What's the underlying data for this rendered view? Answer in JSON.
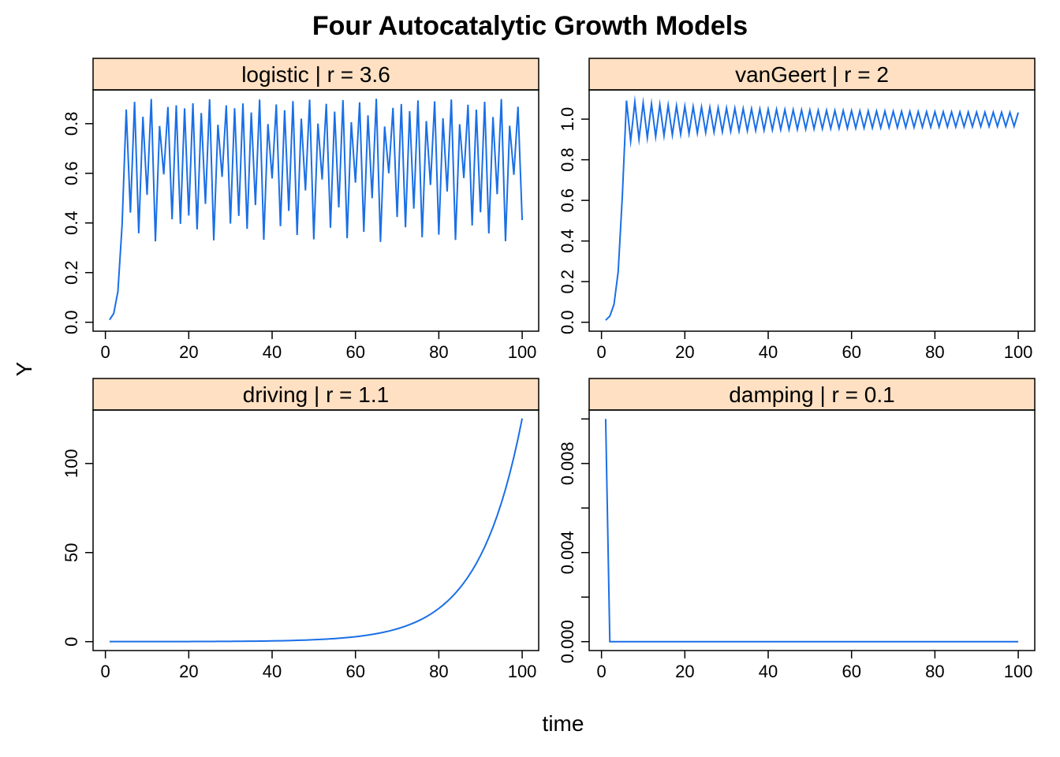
{
  "title": "Four Autocatalytic Growth Models",
  "xlabel": "time",
  "ylabel": "Y",
  "colors": {
    "line": "#1a6fe6",
    "strip": "#ffe0c2",
    "axis": "#000000"
  },
  "chart_data": [
    {
      "type": "line",
      "strip_label": "logistic | r = 3.6",
      "model": "logistic",
      "r": 3.6,
      "y0": 0.01,
      "n": 100,
      "xlim": [
        1,
        100
      ],
      "ylim": [
        0,
        0.9
      ],
      "xticks": [
        0,
        20,
        40,
        60,
        80,
        100
      ],
      "yticks": [
        0.0,
        0.2,
        0.4,
        0.6,
        0.8
      ],
      "ytick_labels": [
        "0.0",
        "0.2",
        "0.4",
        "0.6",
        "0.8"
      ]
    },
    {
      "type": "line",
      "strip_label": "vanGeert | r = 2",
      "model": "vanGeert",
      "r": 2,
      "y0": 0.01,
      "n": 100,
      "xlim": [
        1,
        100
      ],
      "ylim": [
        0,
        1.1
      ],
      "xticks": [
        0,
        20,
        40,
        60,
        80,
        100
      ],
      "yticks": [
        0.0,
        0.2,
        0.4,
        0.6,
        0.8,
        1.0
      ],
      "ytick_labels": [
        "0.0",
        "0.2",
        "0.4",
        "0.6",
        "0.8",
        "1.0"
      ]
    },
    {
      "type": "line",
      "strip_label": "driving | r = 1.1",
      "model": "driving",
      "r": 1.1,
      "y0": 0.01,
      "n": 100,
      "xlim": [
        1,
        100
      ],
      "ylim": [
        0,
        125
      ],
      "xticks": [
        0,
        20,
        40,
        60,
        80,
        100
      ],
      "yticks": [
        0,
        50,
        100
      ],
      "ytick_labels": [
        "0",
        "50",
        "100"
      ]
    },
    {
      "type": "line",
      "strip_label": "damping | r = 0.1",
      "model": "damping",
      "r": 0.1,
      "y0": 0.01,
      "n": 100,
      "xlim": [
        1,
        100
      ],
      "ylim": [
        0,
        0.01
      ],
      "xticks": [
        0,
        20,
        40,
        60,
        80,
        100
      ],
      "yticks": [
        0,
        0.002,
        0.004,
        0.006,
        0.008,
        0.01
      ],
      "ytick_labels": [
        "0.000",
        "",
        "0.004",
        "",
        "0.008",
        ""
      ]
    }
  ]
}
